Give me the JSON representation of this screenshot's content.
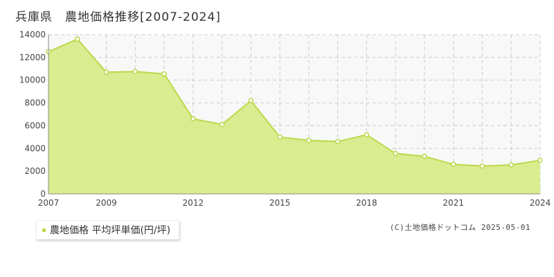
{
  "title": "兵庫県　農地価格推移[2007-2024]",
  "legend": {
    "label": "農地価格 平均坪単価(円/坪)",
    "marker_color": "#bcd84a"
  },
  "credit": "(C)土地価格ドットコム 2025-05-01",
  "colors": {
    "line": "#bcd84a",
    "fill": "#d9ec90",
    "plot_bg": "#f8f8f8",
    "grid": "#cccccc",
    "point_fill": "#ffffff"
  },
  "chart_data": {
    "type": "area",
    "x": [
      2007,
      2008,
      2009,
      2010,
      2011,
      2012,
      2013,
      2014,
      2015,
      2016,
      2017,
      2018,
      2019,
      2020,
      2021,
      2022,
      2023,
      2024
    ],
    "series": [
      {
        "name": "農地価格 平均坪単価(円/坪)",
        "values": [
          12500,
          13600,
          10700,
          10750,
          10550,
          6600,
          6100,
          8200,
          5000,
          4700,
          4600,
          5200,
          3550,
          3300,
          2600,
          2450,
          2550,
          2950
        ]
      }
    ],
    "xticks": [
      2007,
      2009,
      2012,
      2015,
      2018,
      2021,
      2024
    ],
    "yticks": [
      0,
      2000,
      4000,
      6000,
      8000,
      10000,
      12000,
      14000
    ],
    "xlim": [
      2007,
      2024
    ],
    "ylim": [
      0,
      14000
    ],
    "grid": true,
    "legend_position": "bottom-left"
  }
}
